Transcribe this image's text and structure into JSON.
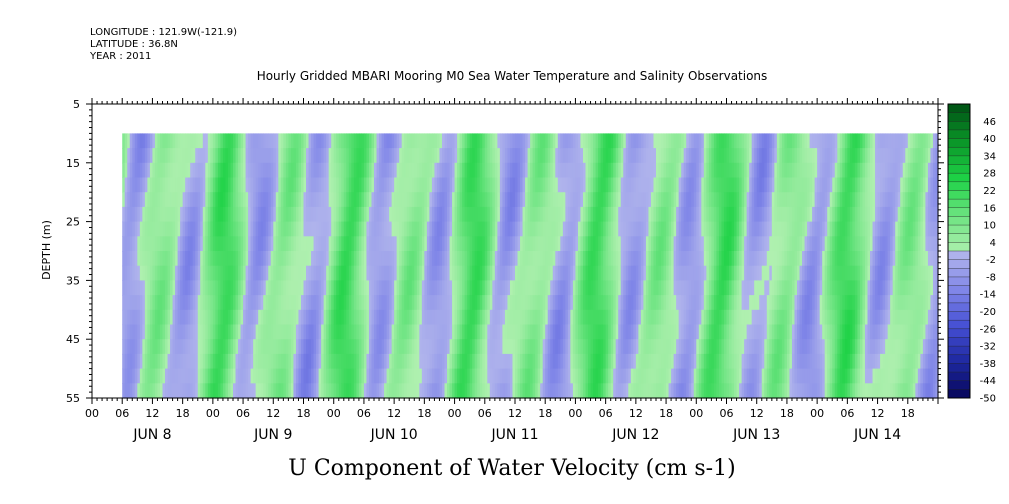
{
  "header": {
    "longitude": "LONGITUDE : 121.9W(-121.9)",
    "latitude": "LATITUDE : 36.8N",
    "year": "YEAR : 2011"
  },
  "chart_data": {
    "type": "heatmap",
    "title": "Hourly Gridded MBARI Mooring M0 Sea Water Temperature and Salinity Observations",
    "variable_title": "U Component of Water Velocity (cm s-1)",
    "ylabel": "DEPTH (m)",
    "xlabel": "",
    "ylim": [
      5,
      55
    ],
    "y_inverted": true,
    "y_ticks": [
      5,
      15,
      25,
      35,
      45,
      55
    ],
    "data_depth_range": [
      10,
      55
    ],
    "x_range_hours": [
      0,
      168
    ],
    "data_start_hour": 6,
    "x_hour_ticks": [
      "00",
      "06",
      "12",
      "18",
      "00",
      "06",
      "12",
      "18",
      "00",
      "06",
      "12",
      "18",
      "00",
      "06",
      "12",
      "18",
      "00",
      "06",
      "12",
      "18",
      "00",
      "06",
      "12",
      "18",
      "00",
      "06",
      "12",
      "18"
    ],
    "day_labels": [
      "JUN 8",
      "JUN 9",
      "JUN 10",
      "JUN 11",
      "JUN 12",
      "JUN 13",
      "JUN 14"
    ],
    "colorbar": {
      "levels": [
        "46",
        "40",
        "34",
        "28",
        "22",
        "16",
        "10",
        "4",
        "-2",
        "-8",
        "-14",
        "-20",
        "-26",
        "-32",
        "-38",
        "-44",
        "-50"
      ],
      "min": -50,
      "max": 52
    },
    "grid": false,
    "legend": "right colorbar"
  }
}
